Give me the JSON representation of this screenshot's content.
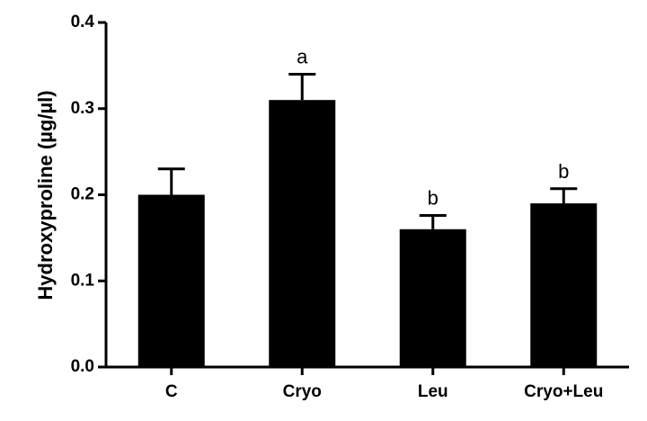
{
  "chart_data": {
    "type": "bar",
    "y_label": "Hydroxyproline (µg/µl)",
    "categories": [
      "C",
      "Cryo",
      "Leu",
      "Cryo+Leu"
    ],
    "values": [
      0.2,
      0.31,
      0.16,
      0.19
    ],
    "errors": [
      0.03,
      0.03,
      0.016,
      0.017
    ],
    "annotations": [
      null,
      "a",
      "b",
      "b"
    ],
    "color": "#000000",
    "ylim": [
      0,
      0.4
    ],
    "yticks": [
      {
        "value": 0,
        "label": "0.0"
      },
      0.1,
      0.2,
      0.3,
      0.4
    ],
    "grid": false
  }
}
